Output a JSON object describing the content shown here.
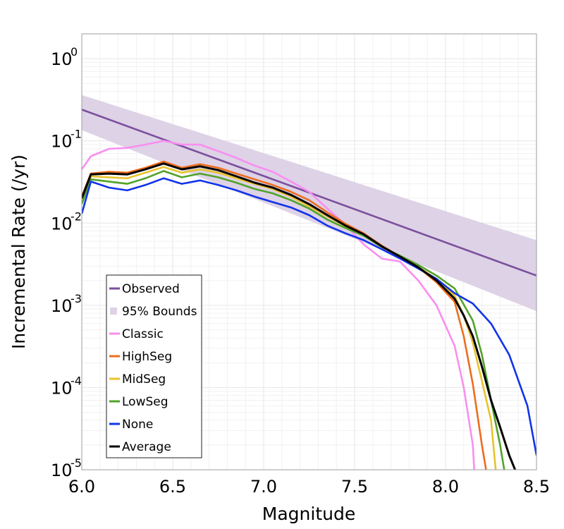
{
  "chart_data": {
    "type": "line",
    "title": "",
    "xlabel": "Magnitude",
    "ylabel": "Incremental Rate (/yr)",
    "xlim": [
      6.0,
      8.5
    ],
    "ylim": [
      1e-05,
      2.0
    ],
    "yscale": "log",
    "grid": true,
    "legend_position": "bottom-left",
    "x_ticks": [
      "6.0",
      "6.5",
      "7.0",
      "7.5",
      "8.0",
      "8.5"
    ],
    "y_ticks": [
      {
        "value": 1e-05,
        "base": "10",
        "exp": "-5"
      },
      {
        "value": 0.0001,
        "base": "10",
        "exp": "-4"
      },
      {
        "value": 0.001,
        "base": "10",
        "exp": "-3"
      },
      {
        "value": 0.01,
        "base": "10",
        "exp": "-2"
      },
      {
        "value": 0.1,
        "base": "10",
        "exp": "-1"
      },
      {
        "value": 1,
        "base": "10",
        "exp": "0"
      }
    ],
    "band": {
      "name": "95% Bounds",
      "color": "#ddd2e6",
      "x": [
        6.0,
        8.5
      ],
      "upper": [
        0.36,
        0.0062
      ],
      "lower": [
        0.135,
        0.00085
      ]
    },
    "series": [
      {
        "name": "Observed",
        "color": "#7b4f9d",
        "x": [
          6.0,
          8.5
        ],
        "y": [
          0.24,
          0.0023
        ]
      },
      {
        "name": "Classic",
        "color": "#f98ef0",
        "x": [
          6.0,
          6.05,
          6.15,
          6.25,
          6.35,
          6.45,
          6.55,
          6.65,
          6.75,
          6.85,
          6.95,
          7.05,
          7.15,
          7.25,
          7.35,
          7.45,
          7.55,
          7.65,
          7.75,
          7.85,
          7.95,
          8.05,
          8.1,
          8.15,
          8.16
        ],
        "y": [
          0.045,
          0.065,
          0.08,
          0.082,
          0.09,
          0.1,
          0.09,
          0.09,
          0.075,
          0.062,
          0.05,
          0.042,
          0.032,
          0.024,
          0.015,
          0.0095,
          0.0055,
          0.0037,
          0.0034,
          0.002,
          0.001,
          0.00032,
          0.0001,
          2e-05,
          8e-06
        ]
      },
      {
        "name": "HighSeg",
        "color": "#ec6d1e",
        "x": [
          6.0,
          6.05,
          6.15,
          6.25,
          6.35,
          6.45,
          6.55,
          6.65,
          6.75,
          6.85,
          6.95,
          7.05,
          7.15,
          7.25,
          7.35,
          7.45,
          7.55,
          7.65,
          7.75,
          7.85,
          7.95,
          8.05,
          8.1,
          8.15,
          8.2,
          8.23
        ],
        "y": [
          0.021,
          0.04,
          0.042,
          0.041,
          0.047,
          0.056,
          0.047,
          0.052,
          0.047,
          0.04,
          0.034,
          0.029,
          0.024,
          0.019,
          0.0135,
          0.0098,
          0.0075,
          0.0053,
          0.0039,
          0.0029,
          0.0019,
          0.0011,
          0.00042,
          0.00011,
          2e-05,
          8e-06
        ]
      },
      {
        "name": "MidSeg",
        "color": "#e8c32c",
        "x": [
          6.0,
          6.05,
          6.15,
          6.25,
          6.35,
          6.45,
          6.55,
          6.65,
          6.75,
          6.85,
          6.95,
          7.05,
          7.15,
          7.25,
          7.35,
          7.45,
          7.55,
          7.65,
          7.75,
          7.85,
          7.95,
          8.05,
          8.1,
          8.15,
          8.2,
          8.25,
          8.28
        ],
        "y": [
          0.019,
          0.037,
          0.036,
          0.035,
          0.041,
          0.048,
          0.041,
          0.045,
          0.041,
          0.035,
          0.03,
          0.026,
          0.021,
          0.016,
          0.012,
          0.0092,
          0.0072,
          0.0052,
          0.0039,
          0.0029,
          0.0021,
          0.0013,
          0.00075,
          0.00035,
          0.00012,
          4e-05,
          8e-06
        ]
      },
      {
        "name": "LowSeg",
        "color": "#52a32a",
        "x": [
          6.0,
          6.05,
          6.15,
          6.25,
          6.35,
          6.45,
          6.55,
          6.65,
          6.75,
          6.85,
          6.95,
          7.05,
          7.15,
          7.25,
          7.35,
          7.45,
          7.55,
          7.65,
          7.75,
          7.85,
          7.95,
          8.05,
          8.15,
          8.2,
          8.25,
          8.3,
          8.33
        ],
        "y": [
          0.017,
          0.034,
          0.032,
          0.03,
          0.035,
          0.043,
          0.036,
          0.04,
          0.036,
          0.031,
          0.026,
          0.023,
          0.019,
          0.015,
          0.011,
          0.0087,
          0.007,
          0.0051,
          0.004,
          0.0031,
          0.0023,
          0.0016,
          0.00065,
          0.00025,
          7e-05,
          2e-05,
          8e-06
        ]
      },
      {
        "name": "None",
        "color": "#1133ea",
        "x": [
          6.0,
          6.05,
          6.15,
          6.25,
          6.35,
          6.45,
          6.55,
          6.65,
          6.75,
          6.85,
          6.95,
          7.05,
          7.15,
          7.25,
          7.35,
          7.45,
          7.55,
          7.65,
          7.75,
          7.85,
          7.95,
          8.05,
          8.15,
          8.25,
          8.35,
          8.45,
          8.5
        ],
        "y": [
          0.013,
          0.032,
          0.027,
          0.025,
          0.029,
          0.035,
          0.03,
          0.033,
          0.029,
          0.025,
          0.021,
          0.018,
          0.0155,
          0.0125,
          0.0093,
          0.0075,
          0.0062,
          0.0048,
          0.0037,
          0.0028,
          0.0021,
          0.0014,
          0.00105,
          0.0006,
          0.00025,
          6e-05,
          1.5e-05
        ]
      },
      {
        "name": "Average",
        "color": "#000000",
        "x": [
          6.0,
          6.05,
          6.15,
          6.25,
          6.35,
          6.45,
          6.55,
          6.65,
          6.75,
          6.85,
          6.95,
          7.05,
          7.15,
          7.25,
          7.35,
          7.45,
          7.55,
          7.65,
          7.75,
          7.85,
          7.95,
          8.05,
          8.1,
          8.15,
          8.2,
          8.25,
          8.3,
          8.35,
          8.4,
          8.43
        ],
        "y": [
          0.02,
          0.039,
          0.04,
          0.039,
          0.045,
          0.053,
          0.045,
          0.049,
          0.044,
          0.037,
          0.031,
          0.027,
          0.022,
          0.017,
          0.0125,
          0.0093,
          0.0073,
          0.0052,
          0.0039,
          0.0029,
          0.002,
          0.0012,
          0.00075,
          0.00042,
          0.00018,
          7e-05,
          3.3e-05,
          1.5e-05,
          8e-06,
          5e-06
        ]
      }
    ]
  }
}
